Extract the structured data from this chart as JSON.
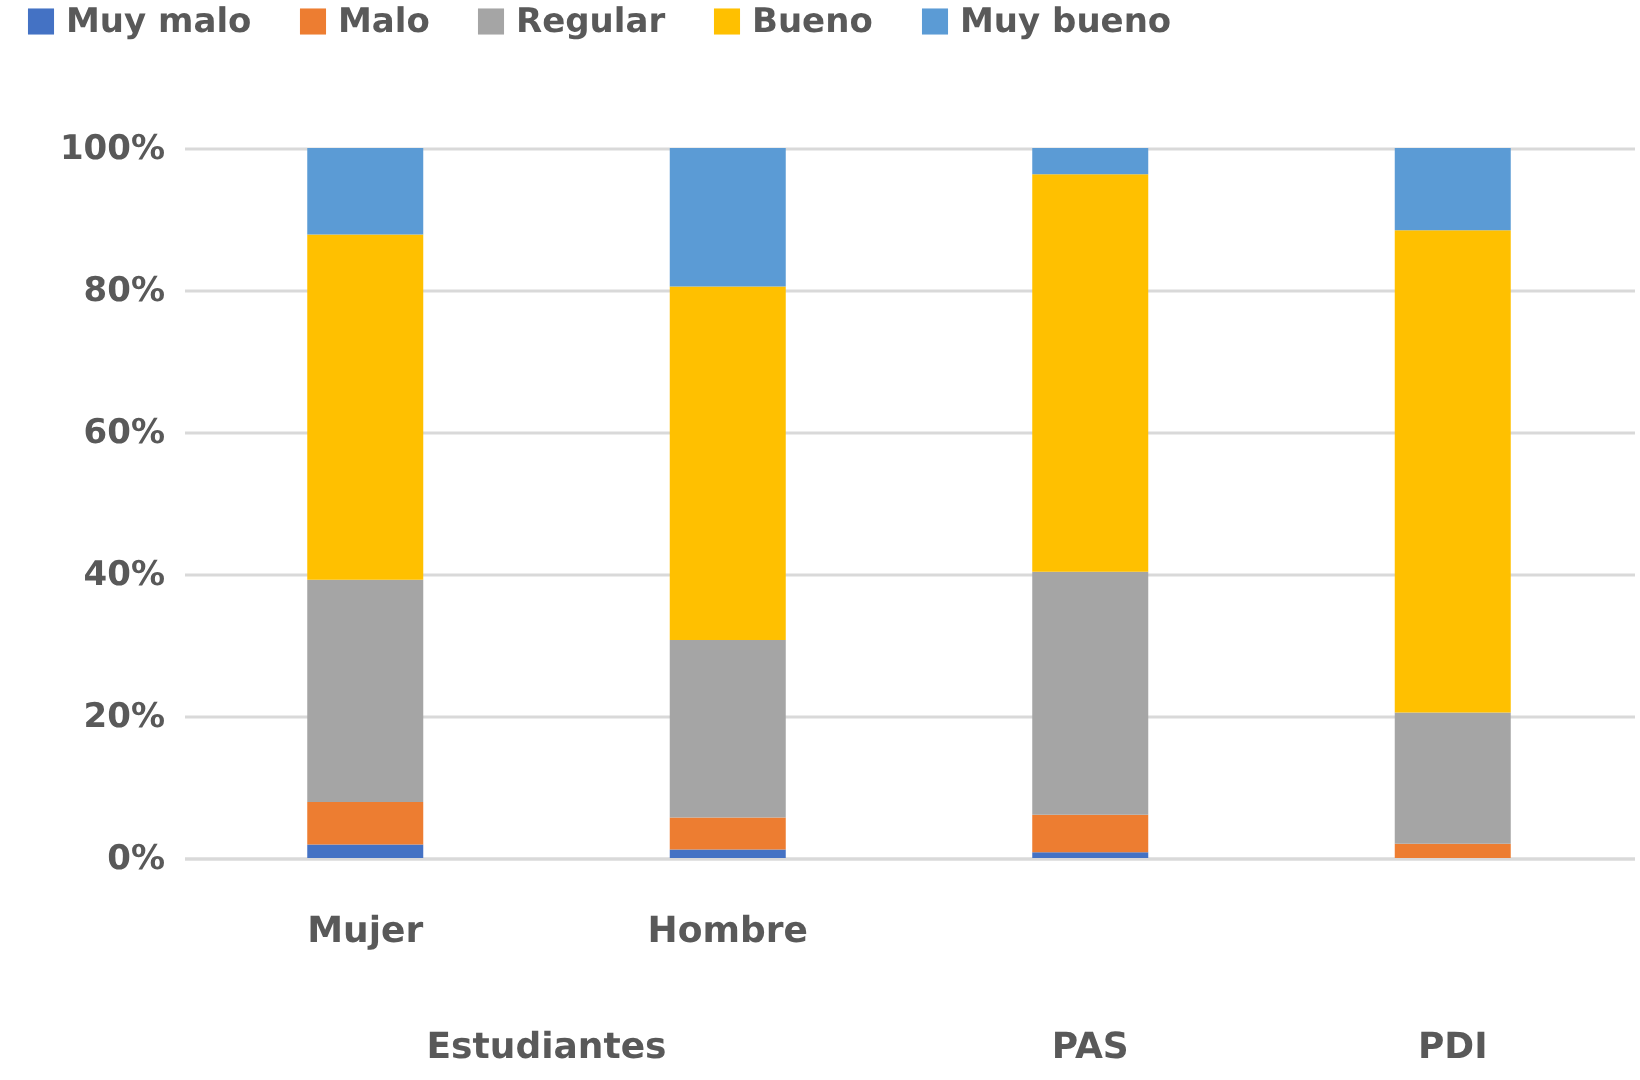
{
  "chart_data": {
    "type": "bar",
    "stacked": true,
    "categories": [
      "Mujer",
      "Hombre",
      "PAS",
      "PDI"
    ],
    "series": [
      {
        "name": "Muy malo",
        "color": "#4472c4",
        "values": [
          1.9,
          1.2,
          0.8,
          0
        ]
      },
      {
        "name": "Malo",
        "color": "#ed7d31",
        "values": [
          6.0,
          4.5,
          5.3,
          2.0
        ]
      },
      {
        "name": "Regular",
        "color": "#a5a5a5",
        "values": [
          31.3,
          25.0,
          34.2,
          18.5
        ]
      },
      {
        "name": "Bueno",
        "color": "#ffc000",
        "values": [
          48.6,
          49.8,
          56.0,
          67.9
        ]
      },
      {
        "name": "Muy bueno",
        "color": "#5b9bd5",
        "values": [
          12.2,
          19.5,
          3.7,
          11.6
        ]
      }
    ],
    "ylim": [
      0,
      100
    ],
    "yticks": [
      {
        "value": 0,
        "label": "0%"
      },
      {
        "value": 20,
        "label": "20%"
      },
      {
        "value": 40,
        "label": "40%"
      },
      {
        "value": 60,
        "label": "60%"
      },
      {
        "value": 80,
        "label": "80%"
      },
      {
        "value": 100,
        "label": "100%"
      }
    ],
    "grid": "y",
    "legend": "top",
    "annotations": [
      "Estudiantes"
    ]
  }
}
